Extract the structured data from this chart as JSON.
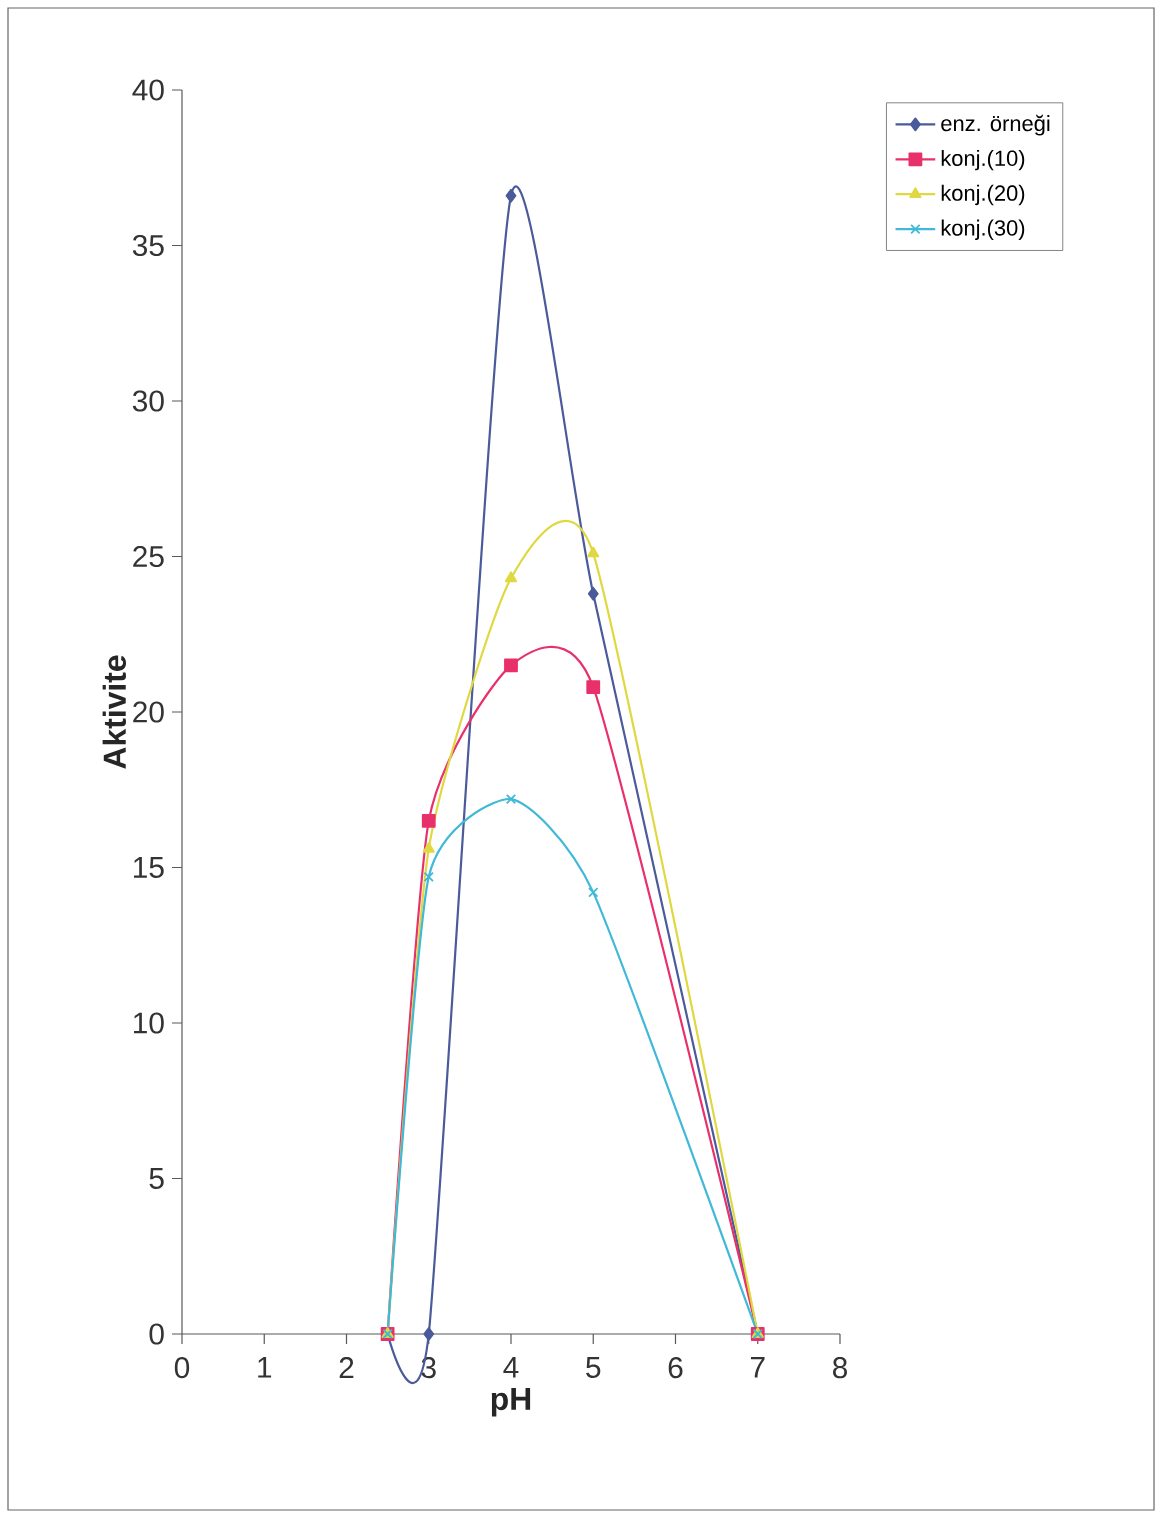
{
  "chart_data": {
    "type": "line",
    "xlabel": "pH",
    "ylabel": "Aktivite",
    "xlim": [
      0,
      8
    ],
    "xticks": [
      0,
      1,
      2,
      3,
      4,
      5,
      6,
      7,
      8
    ],
    "ylim": [
      0,
      40
    ],
    "yticks": [
      0,
      5,
      10,
      15,
      20,
      25,
      30,
      35,
      40
    ],
    "grid": false,
    "legend": "top right",
    "series": [
      {
        "name": "enz. örneği",
        "color": "#4a5a9a",
        "marker": "diamond",
        "x": [
          2.5,
          3,
          4,
          5,
          7
        ],
        "values": [
          0,
          0,
          36.6,
          23.8,
          0
        ]
      },
      {
        "name": "konj.(10)",
        "color": "#e8306a",
        "marker": "square",
        "x": [
          2.5,
          3,
          4,
          5,
          7
        ],
        "values": [
          0,
          16.5,
          21.5,
          20.8,
          0
        ]
      },
      {
        "name": "konj.(20)",
        "color": "#e0d840",
        "marker": "triangle",
        "x": [
          2.5,
          3,
          4,
          5,
          7
        ],
        "values": [
          0,
          15.6,
          24.3,
          25.1,
          0
        ]
      },
      {
        "name": "konj.(30)",
        "color": "#40b8d8",
        "marker": "cross",
        "x": [
          2.5,
          3,
          4,
          5,
          7
        ],
        "values": [
          0,
          14.7,
          17.2,
          14.2,
          0
        ]
      }
    ]
  }
}
